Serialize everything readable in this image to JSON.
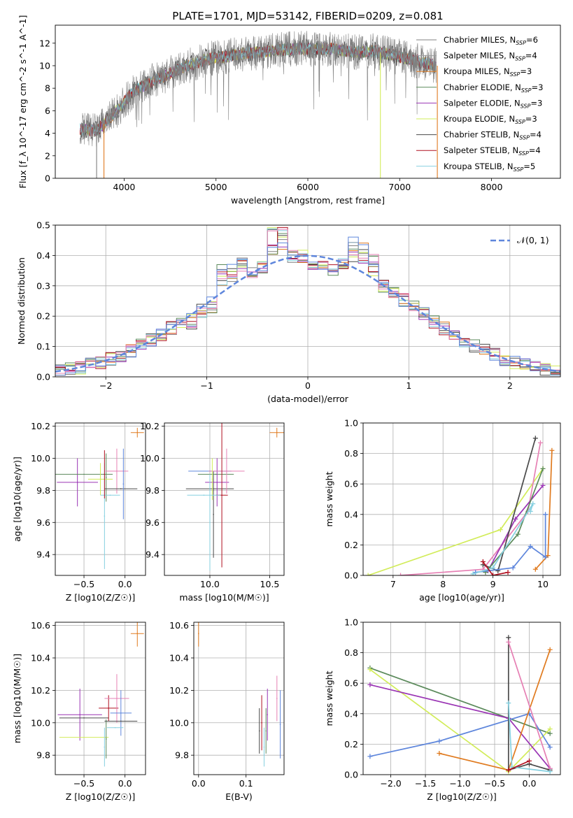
{
  "title": "PLATE=1701, MJD=53142, FIBERID=0209, z=0.081",
  "colors": {
    "chabrier_miles": "#808080",
    "salpeter_miles": "#9b9b9b",
    "kroupa_miles": "#e07b20",
    "chabrier_elodie": "#5b8a5b",
    "salpeter_elodie": "#9a34b4",
    "kroupa_elodie": "#d2ec5a",
    "chabrier_stelib": "#4a4a4a",
    "salpeter_stelib": "#b01020",
    "kroupa_stelib": "#86d0e0",
    "blue": "#5e86dc",
    "pink": "#e680b4",
    "gauss": "#5e86dc"
  },
  "chart_data": [
    {
      "id": "spectrum",
      "type": "line",
      "xlabel": "wavelength [Angstrom, rest frame]",
      "ylabel": "Flux [f_λ 10^-17 erg cm^-2 s^-1 A^-1]",
      "xlim": [
        3250,
        8750
      ],
      "ylim": [
        0,
        13.6
      ],
      "xticks": [
        4000,
        5000,
        6000,
        7000,
        8000
      ],
      "yticks": [
        0,
        2,
        4,
        6,
        8,
        10,
        12
      ],
      "legend_position": "upper right",
      "continuum": {
        "x": [
          3520,
          3700,
          3900,
          4100,
          4300,
          4500,
          4700,
          4900,
          5100,
          5300,
          5500,
          5700,
          5900,
          6100,
          6300,
          6500,
          6700,
          6900,
          7100,
          7300,
          7400
        ],
        "y": [
          4.4,
          4.2,
          5.8,
          7.7,
          8.6,
          9.3,
          10.0,
          10.6,
          10.8,
          11.1,
          11.2,
          11.4,
          11.5,
          11.5,
          11.5,
          11.2,
          11.3,
          11.0,
          10.6,
          10.2,
          10.0
        ]
      },
      "data_extent": [
        3520,
        7400
      ],
      "series": [
        {
          "name": "Chabrier MILES, N_SSP=6",
          "color_key": "chabrier_miles",
          "label_main": "Chabrier MILES, N",
          "label_sub": "SSP",
          "label_val": "=6"
        },
        {
          "name": "Salpeter MILES, N_SSP=4",
          "color_key": "salpeter_miles",
          "label_main": "Salpeter MILES, N",
          "label_sub": "SSP",
          "label_val": "=4"
        },
        {
          "name": "Kroupa MILES, N_SSP=3",
          "color_key": "kroupa_miles",
          "label_main": "Kroupa MILES, N",
          "label_sub": "SSP",
          "label_val": "=3"
        },
        {
          "name": "Chabrier ELODIE, N_SSP=3",
          "color_key": "chabrier_elodie",
          "label_main": "Chabrier ELODIE, N",
          "label_sub": "SSP",
          "label_val": "=3"
        },
        {
          "name": "Salpeter ELODIE, N_SSP=3",
          "color_key": "salpeter_elodie",
          "label_main": "Salpeter ELODIE, N",
          "label_sub": "SSP",
          "label_val": "=3"
        },
        {
          "name": "Kroupa ELODIE, N_SSP=3",
          "color_key": "kroupa_elodie",
          "label_main": "Kroupa ELODIE, N",
          "label_sub": "SSP",
          "label_val": "=3"
        },
        {
          "name": "Chabrier STELIB, N_SSP=4",
          "color_key": "chabrier_stelib",
          "label_main": "Chabrier STELIB, N",
          "label_sub": "SSP",
          "label_val": "=4"
        },
        {
          "name": "Salpeter STELIB, N_SSP=4",
          "color_key": "salpeter_stelib",
          "label_main": "Salpeter STELIB, N",
          "label_sub": "SSP",
          "label_val": "=4"
        },
        {
          "name": "Kroupa STELIB, N_SSP=5",
          "color_key": "kroupa_stelib",
          "label_main": "Kroupa STELIB, N",
          "label_sub": "SSP",
          "label_val": "=5"
        }
      ],
      "drops": [
        {
          "x": 6790,
          "color_key": "kroupa_elodie"
        },
        {
          "x": 7410,
          "color_key": "kroupa_miles"
        },
        {
          "x": 3780,
          "color_key": "kroupa_miles"
        },
        {
          "x": 3700,
          "color_key": "chabrier_miles"
        }
      ]
    },
    {
      "id": "residuals",
      "type": "histogram",
      "xlabel": "(data-model)/error",
      "ylabel": "Normed distribution",
      "xlim": [
        -2.5,
        2.5
      ],
      "ylim": [
        0,
        0.5
      ],
      "xticks": [
        -2,
        -1,
        0,
        1,
        2
      ],
      "yticks": [
        0.0,
        0.1,
        0.2,
        0.3,
        0.4,
        0.5
      ],
      "bin_width": 0.1,
      "legend": "𝒩(0, 1)",
      "legend_position": "upper right",
      "series_colors": [
        "chabrier_miles",
        "kroupa_miles",
        "chabrier_elodie",
        "salpeter_elodie",
        "kroupa_elodie",
        "chabrier_stelib",
        "salpeter_stelib",
        "kroupa_stelib",
        "pink",
        "blue"
      ],
      "bumps": [
        {
          "x": -0.3,
          "dy": 0.07
        },
        {
          "x": -0.75,
          "dy": 0.05
        },
        {
          "x": 0.55,
          "dy": 0.06
        },
        {
          "x": 0.15,
          "dy": -0.03
        },
        {
          "x": -1.05,
          "dy": -0.02
        }
      ]
    },
    {
      "id": "age_vs_Z",
      "type": "scatter",
      "xlabel": "Z [log10(Z/Z☉)]",
      "ylabel": "age [log10(age/yr)]",
      "xlim": [
        -0.85,
        0.25
      ],
      "ylim": [
        9.27,
        10.22
      ],
      "xticks": [
        -0.5,
        0.0
      ],
      "yticks": [
        9.4,
        9.6,
        9.8,
        10.0,
        10.2
      ],
      "points": [
        {
          "c": "kroupa_miles",
          "x": 0.15,
          "y": 10.16,
          "xe": 0.08,
          "ye": 0.03
        },
        {
          "c": "salpeter_elodie",
          "x": -0.58,
          "y": 9.85,
          "xe": 0.25,
          "ye": 0.15
        },
        {
          "c": "chabrier_elodie",
          "x": -0.5,
          "y": 9.9,
          "xe": 0.35,
          "ye": 0.0
        },
        {
          "c": "chabrier_elodie",
          "x": -0.23,
          "y": 9.88,
          "xe": 0.0,
          "ye": 0.15
        },
        {
          "c": "kroupa_elodie",
          "x": -0.3,
          "y": 9.87,
          "xe": 0.15,
          "ye": 0.1
        },
        {
          "c": "pink",
          "x": -0.1,
          "y": 9.92,
          "xe": 0.14,
          "ye": 0.14
        },
        {
          "c": "chabrier_stelib",
          "x": -0.05,
          "y": 9.81,
          "xe": 0.2,
          "ye": 0.0
        },
        {
          "c": "kroupa_stelib",
          "x": -0.25,
          "y": 9.64,
          "xe": 0.0,
          "ye": 0.33
        },
        {
          "c": "kroupa_stelib",
          "x": -0.18,
          "y": 9.77,
          "xe": 0.12,
          "ye": 0.0
        },
        {
          "c": "blue",
          "x": -0.02,
          "y": 9.84,
          "xe": 0.0,
          "ye": 0.22
        },
        {
          "c": "salpeter_stelib",
          "x": -0.25,
          "y": 9.9,
          "xe": 0.0,
          "ye": 0.15
        }
      ]
    },
    {
      "id": "age_vs_mass",
      "type": "scatter",
      "xlabel": "mass [log10(M/M☉)]",
      "ylabel": "",
      "xlim": [
        9.62,
        10.62
      ],
      "ylim": [
        9.27,
        10.22
      ],
      "xticks": [
        10.0,
        10.5
      ],
      "yticks": [
        9.4,
        9.6,
        9.8,
        10.0,
        10.2
      ],
      "points": [
        {
          "c": "kroupa_miles",
          "x": 10.56,
          "y": 10.16,
          "xe": 0.06,
          "ye": 0.03
        },
        {
          "c": "chabrier_stelib",
          "x": 10.0,
          "y": 9.81,
          "xe": 0.2,
          "ye": 0.0
        },
        {
          "c": "chabrier_stelib",
          "x": 10.03,
          "y": 9.65,
          "xe": 0.0,
          "ye": 0.27
        },
        {
          "c": "chabrier_elodie",
          "x": 10.05,
          "y": 9.9,
          "xe": 0.15,
          "ye": 0.0
        },
        {
          "c": "blue",
          "x": 10.0,
          "y": 9.92,
          "xe": 0.18,
          "ye": 0.0
        },
        {
          "c": "salpeter_elodie",
          "x": 10.06,
          "y": 9.85,
          "xe": 0.1,
          "ye": 0.15
        },
        {
          "c": "pink",
          "x": 10.14,
          "y": 9.92,
          "xe": 0.15,
          "ye": 0.14
        },
        {
          "c": "kroupa_elodie",
          "x": 10.02,
          "y": 9.87,
          "xe": 0.0,
          "ye": 0.13
        },
        {
          "c": "salpeter_stelib",
          "x": 10.1,
          "y": 9.77,
          "xe": 0.05,
          "ye": 0.45
        },
        {
          "c": "kroupa_stelib",
          "x": 9.95,
          "y": 9.77,
          "xe": 0.14,
          "ye": 0.0
        },
        {
          "c": "kroupa_stelib",
          "x": 10.0,
          "y": 9.6,
          "xe": 0.0,
          "ye": 0.3
        }
      ]
    },
    {
      "id": "weight_vs_age",
      "type": "line",
      "xlabel": "age [log10(age/yr)]",
      "ylabel": "mass weight",
      "xlim": [
        6.4,
        10.35
      ],
      "ylim": [
        0,
        1.0
      ],
      "xticks": [
        7,
        8,
        9,
        10
      ],
      "yticks": [
        0.0,
        0.2,
        0.4,
        0.6,
        0.8,
        1.0
      ],
      "lines": [
        {
          "c": "kroupa_elodie",
          "x": [
            6.5,
            9.15,
            10.0
          ],
          "y": [
            0.0,
            0.3,
            0.7
          ]
        },
        {
          "c": "pink",
          "x": [
            7.15,
            8.8,
            9.7,
            9.95
          ],
          "y": [
            0.0,
            0.04,
            0.42,
            0.87
          ]
        },
        {
          "c": "salpeter_elodie",
          "x": [
            8.9,
            9.45,
            10.0
          ],
          "y": [
            0.03,
            0.37,
            0.59
          ]
        },
        {
          "c": "chabrier_stelib",
          "x": [
            8.8,
            9.1,
            9.85
          ],
          "y": [
            0.07,
            0.03,
            0.9
          ]
        },
        {
          "c": "chabrier_elodie",
          "x": [
            8.85,
            9.5,
            10.0
          ],
          "y": [
            0.02,
            0.27,
            0.7
          ]
        },
        {
          "c": "kroupa_miles",
          "x": [
            9.85,
            10.1,
            10.18
          ],
          "y": [
            0.04,
            0.13,
            0.82
          ]
        },
        {
          "c": "blue",
          "x": [
            8.65,
            9.4,
            9.75,
            10.05,
            10.05
          ],
          "y": [
            0.02,
            0.05,
            0.19,
            0.12,
            0.4
          ]
        },
        {
          "c": "kroupa_stelib",
          "x": [
            8.6,
            9.0,
            9.8,
            9.75
          ],
          "y": [
            0.01,
            0.05,
            0.47,
            0.42
          ]
        },
        {
          "c": "salpeter_stelib",
          "x": [
            8.8,
            9.0,
            9.3
          ],
          "y": [
            0.09,
            0.0,
            0.02
          ]
        }
      ]
    },
    {
      "id": "mass_vs_Z",
      "type": "scatter",
      "xlabel": "Z [log10(Z/Z☉)]",
      "ylabel": "mass [log10(M/M☉)]",
      "xlim": [
        -0.85,
        0.25
      ],
      "ylim": [
        9.68,
        10.62
      ],
      "xticks": [
        -0.5,
        0.0
      ],
      "yticks": [
        9.8,
        10.0,
        10.2,
        10.4,
        10.6
      ],
      "points": [
        {
          "c": "kroupa_miles",
          "x": 0.15,
          "y": 10.55,
          "xe": 0.08,
          "ye": 0.08
        },
        {
          "c": "salpeter_elodie",
          "x": -0.55,
          "y": 10.05,
          "xe": 0.27,
          "ye": 0.16
        },
        {
          "c": "chabrier_stelib",
          "x": -0.5,
          "y": 10.03,
          "xe": 0.3,
          "ye": 0.0
        },
        {
          "c": "kroupa_elodie",
          "x": -0.5,
          "y": 9.91,
          "xe": 0.3,
          "ye": 0.0
        },
        {
          "c": "salpeter_stelib",
          "x": -0.2,
          "y": 10.09,
          "xe": 0.12,
          "ye": 0.08
        },
        {
          "c": "pink",
          "x": -0.1,
          "y": 10.15,
          "xe": 0.15,
          "ye": 0.15
        },
        {
          "c": "chabrier_elodie",
          "x": -0.23,
          "y": 9.9,
          "xe": 0.0,
          "ye": 0.12
        },
        {
          "c": "blue",
          "x": -0.05,
          "y": 10.06,
          "xe": 0.13,
          "ye": 0.14
        },
        {
          "c": "chabrier_stelib",
          "x": -0.05,
          "y": 10.01,
          "xe": 0.2,
          "ye": 0.0
        },
        {
          "c": "kroupa_stelib",
          "x": -0.25,
          "y": 9.85,
          "xe": 0.0,
          "ye": 0.12
        },
        {
          "c": "kroupa_stelib",
          "x": -0.12,
          "y": 9.97,
          "xe": 0.1,
          "ye": 0.0
        }
      ]
    },
    {
      "id": "mass_vs_EBV",
      "type": "scatter",
      "xlabel": "E(B-V)",
      "ylabel": "",
      "xlim": [
        -0.01,
        0.18
      ],
      "ylim": [
        9.68,
        10.62
      ],
      "xticks": [
        0.0,
        0.1
      ],
      "yticks": [
        9.8,
        10.0,
        10.2,
        10.4,
        10.6
      ],
      "points": [
        {
          "c": "kroupa_miles",
          "x": 0.0,
          "y": 10.55,
          "xe": 0.0,
          "ye": 0.08
        },
        {
          "c": "chabrier_stelib",
          "x": 0.128,
          "y": 9.95,
          "xe": 0.0,
          "ye": 0.14
        },
        {
          "c": "salpeter_stelib",
          "x": 0.133,
          "y": 10.0,
          "xe": 0.0,
          "ye": 0.17
        },
        {
          "c": "kroupa_stelib",
          "x": 0.138,
          "y": 9.85,
          "xe": 0.0,
          "ye": 0.12
        },
        {
          "c": "chabrier_elodie",
          "x": 0.142,
          "y": 9.95,
          "xe": 0.0,
          "ye": 0.14
        },
        {
          "c": "salpeter_elodie",
          "x": 0.145,
          "y": 10.05,
          "xe": 0.0,
          "ye": 0.16
        },
        {
          "c": "pink",
          "x": 0.165,
          "y": 10.15,
          "xe": 0.0,
          "ye": 0.14
        },
        {
          "c": "blue",
          "x": 0.172,
          "y": 9.99,
          "xe": 0.0,
          "ye": 0.21
        }
      ]
    },
    {
      "id": "weight_vs_Z",
      "type": "line",
      "xlabel": "Z [log10(Z/Z☉)]",
      "ylabel": "mass weight",
      "xlim": [
        -2.4,
        0.45
      ],
      "ylim": [
        0,
        1.0
      ],
      "xticks": [
        -2.0,
        -1.5,
        -1.0,
        -0.5,
        0.0
      ],
      "yticks": [
        0.0,
        0.2,
        0.4,
        0.6,
        0.8,
        1.0
      ],
      "lines": [
        {
          "c": "chabrier_elodie",
          "x": [
            -2.3,
            -0.3,
            0.3
          ],
          "y": [
            0.7,
            0.37,
            0.27
          ]
        },
        {
          "c": "kroupa_elodie",
          "x": [
            -2.3,
            -0.3,
            0.3
          ],
          "y": [
            0.69,
            0.02,
            0.3
          ]
        },
        {
          "c": "salpeter_elodie",
          "x": [
            -2.3,
            -0.3,
            0.3
          ],
          "y": [
            0.59,
            0.37,
            0.04
          ]
        },
        {
          "c": "blue",
          "x": [
            -2.3,
            -1.3,
            0.0,
            0.3
          ],
          "y": [
            0.12,
            0.22,
            0.4,
            0.18
          ]
        },
        {
          "c": "kroupa_miles",
          "x": [
            -1.3,
            -0.3,
            0.3
          ],
          "y": [
            0.14,
            0.03,
            0.82
          ]
        },
        {
          "c": "chabrier_stelib",
          "x": [
            -0.3,
            -0.3,
            0.0,
            0.3
          ],
          "y": [
            0.9,
            0.03,
            0.07,
            0.03
          ]
        },
        {
          "c": "pink",
          "x": [
            -0.3,
            0.3
          ],
          "y": [
            0.87,
            0.04
          ]
        },
        {
          "c": "kroupa_stelib",
          "x": [
            -0.3,
            -0.25,
            0.3
          ],
          "y": [
            0.47,
            0.05,
            0.02
          ]
        },
        {
          "c": "salpeter_stelib",
          "x": [
            -0.3,
            0.0
          ],
          "y": [
            0.03,
            0.09
          ]
        }
      ]
    }
  ]
}
